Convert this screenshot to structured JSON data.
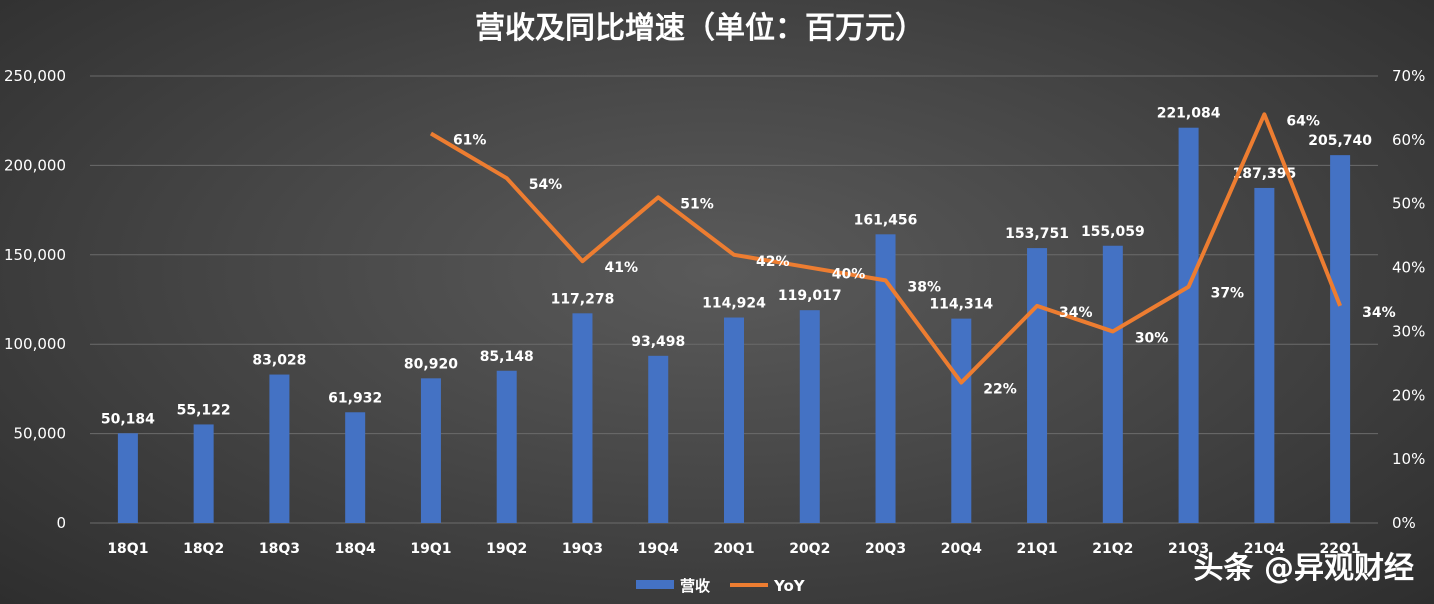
{
  "chart_data": {
    "type": "bar",
    "title": "营收及同比增速（单位：百万元）",
    "categories": [
      "18Q1",
      "18Q2",
      "18Q3",
      "18Q4",
      "19Q1",
      "19Q2",
      "19Q3",
      "19Q4",
      "20Q1",
      "20Q2",
      "20Q3",
      "20Q4",
      "21Q1",
      "21Q2",
      "21Q3",
      "21Q4",
      "22Q1"
    ],
    "series": [
      {
        "name": "营收",
        "type": "bar",
        "axis": "left",
        "color": "#4472C4",
        "values": [
          50184,
          55122,
          83028,
          61932,
          80920,
          85148,
          117278,
          93498,
          114924,
          119017,
          161456,
          114314,
          153751,
          155059,
          221084,
          187395,
          205740
        ],
        "labels": [
          "50,184",
          "55,122",
          "83,028",
          "61,932",
          "80,920",
          "85,148",
          "117,278",
          "93,498",
          "114,924",
          "119,017",
          "161,456",
          "114,314",
          "153,751",
          "155,059",
          "221,084",
          "187,395",
          "205,740"
        ]
      },
      {
        "name": "YoY",
        "type": "line",
        "axis": "right",
        "color": "#ED7D31",
        "values": [
          null,
          null,
          null,
          null,
          61,
          54,
          41,
          51,
          42,
          40,
          38,
          22,
          34,
          30,
          37,
          64,
          34
        ],
        "labels": [
          "",
          "",
          "",
          "",
          "61%",
          "54%",
          "41%",
          "51%",
          "42%",
          "40%",
          "38%",
          "22%",
          "34%",
          "30%",
          "37%",
          "64%",
          "34%"
        ]
      }
    ],
    "y_left": {
      "min": 0,
      "max": 250000,
      "ticks": [
        "0",
        "50,000",
        "100,000",
        "150,000",
        "200,000",
        "250,000"
      ]
    },
    "y_right": {
      "min": 0,
      "max": 70,
      "ticks": [
        "0%",
        "10%",
        "20%",
        "30%",
        "40%",
        "50%",
        "60%",
        "70%"
      ]
    },
    "grid": true,
    "legend": "bottom-center"
  },
  "watermark": "头条 @异观财经"
}
